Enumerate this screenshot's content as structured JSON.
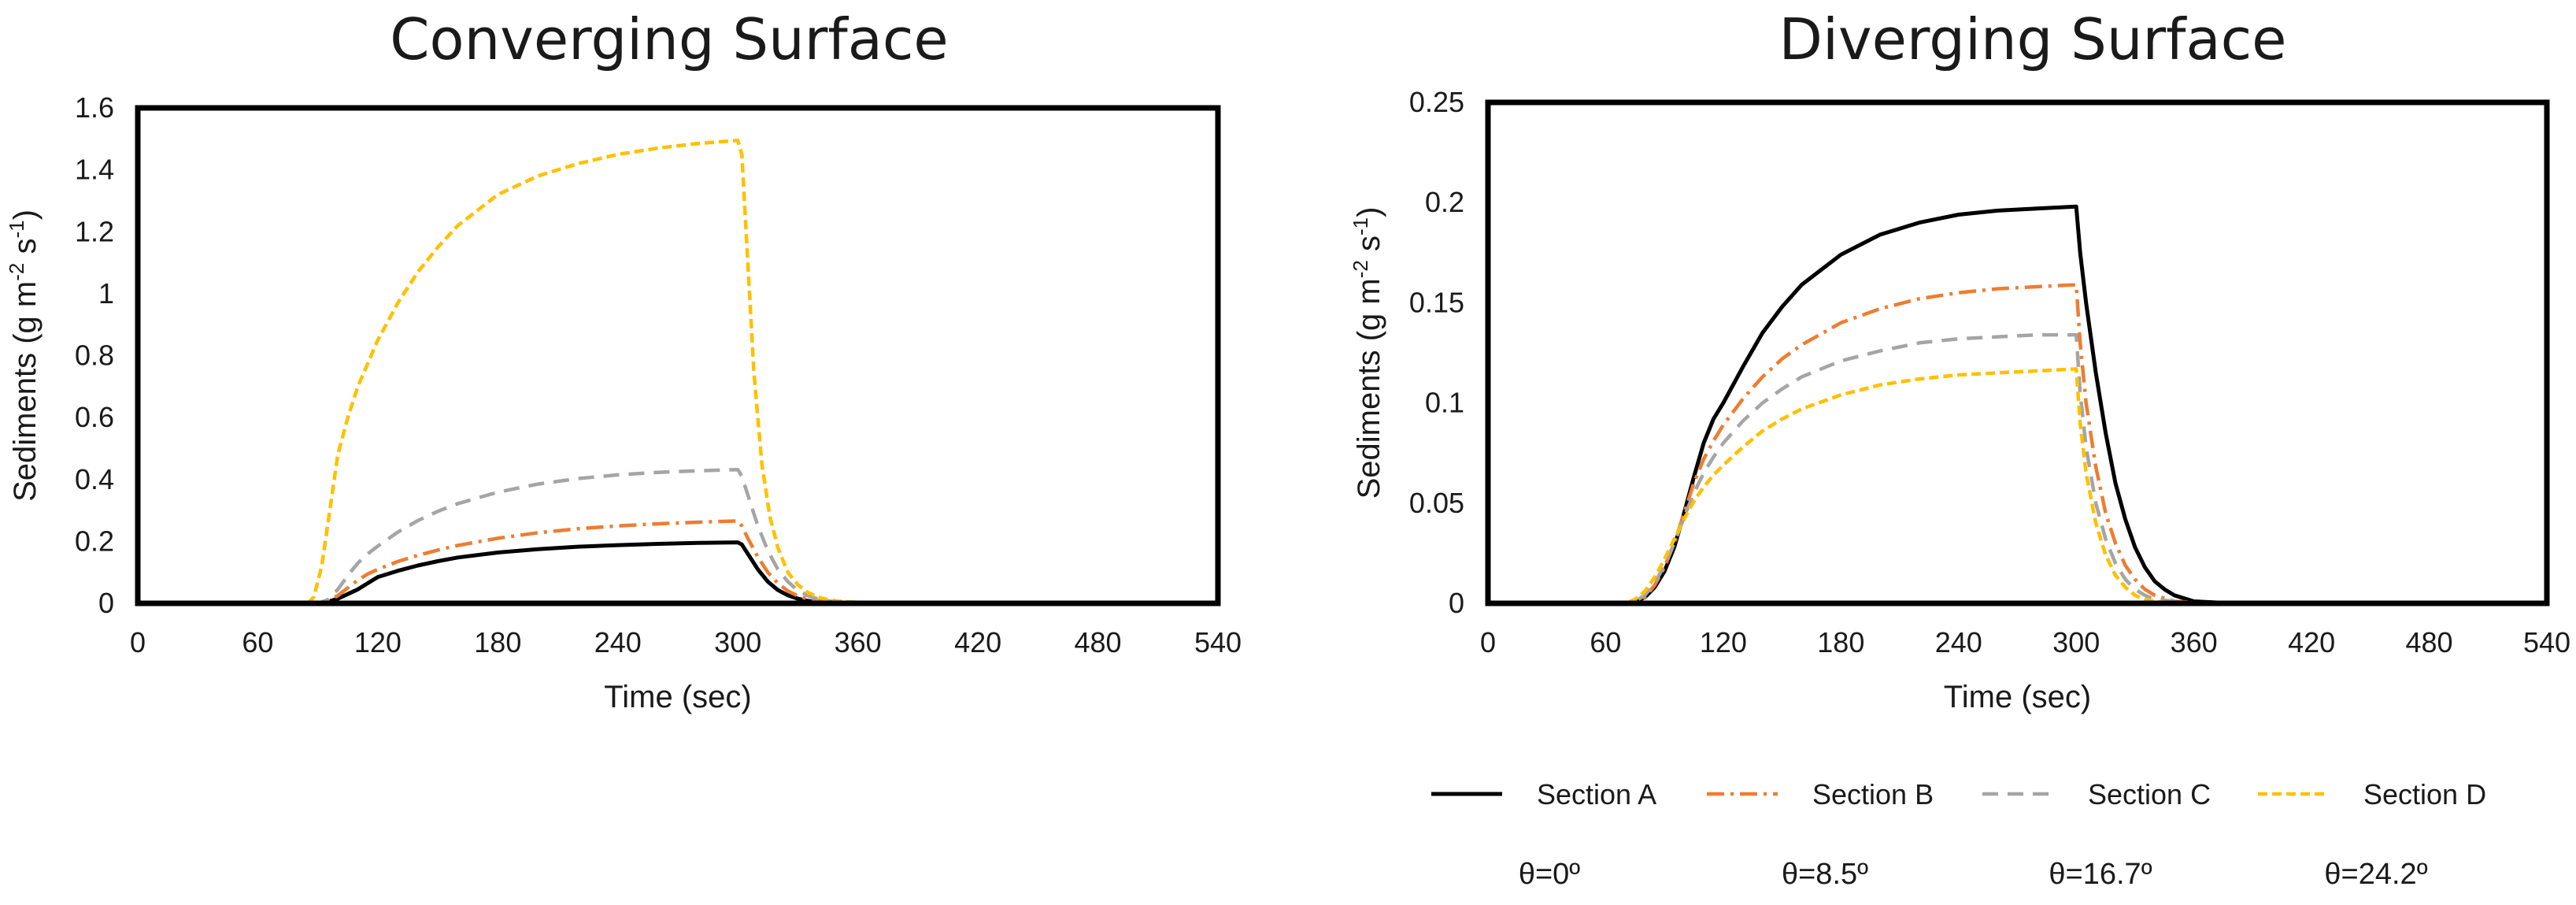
{
  "chart_data": [
    {
      "type": "line",
      "title": "Converging Surface",
      "xlabel": "Time (sec)",
      "ylabel": "Sediments (g m⁻² s⁻¹)",
      "xlim": [
        0,
        540
      ],
      "ylim": [
        0,
        1.6
      ],
      "xticks": [
        "0",
        "60",
        "120",
        "180",
        "240",
        "300",
        "360",
        "420",
        "480",
        "540"
      ],
      "yticks": [
        "0",
        "0.2",
        "0.4",
        "0.6",
        "0.8",
        "1",
        "1.2",
        "1.4",
        "1.6"
      ],
      "grid": false,
      "series": [
        {
          "name": "Section A",
          "color": "#000000",
          "dash": "solid",
          "x": [
            0,
            90,
            95,
            100,
            105,
            110,
            115,
            120,
            130,
            140,
            150,
            160,
            180,
            200,
            220,
            240,
            260,
            280,
            300,
            302,
            305,
            310,
            315,
            320,
            325,
            330,
            335,
            340,
            345,
            350,
            360,
            380,
            540
          ],
          "y": [
            0,
            0,
            0.005,
            0.015,
            0.03,
            0.045,
            0.065,
            0.085,
            0.105,
            0.122,
            0.136,
            0.148,
            0.164,
            0.175,
            0.183,
            0.188,
            0.192,
            0.195,
            0.197,
            0.19,
            0.16,
            0.11,
            0.07,
            0.043,
            0.026,
            0.015,
            0.008,
            0.004,
            0.002,
            0.001,
            0,
            0,
            0
          ]
        },
        {
          "name": "Section B",
          "color": "#ED7D31",
          "dash": "dashdot",
          "x": [
            0,
            90,
            95,
            100,
            105,
            110,
            115,
            120,
            130,
            140,
            150,
            160,
            180,
            200,
            220,
            240,
            260,
            280,
            300,
            302,
            305,
            310,
            315,
            320,
            325,
            330,
            335,
            340,
            345,
            350,
            360,
            380,
            540
          ],
          "y": [
            0,
            0,
            0.008,
            0.025,
            0.05,
            0.075,
            0.095,
            0.11,
            0.135,
            0.155,
            0.172,
            0.187,
            0.21,
            0.228,
            0.241,
            0.25,
            0.257,
            0.262,
            0.266,
            0.25,
            0.21,
            0.15,
            0.1,
            0.065,
            0.04,
            0.024,
            0.014,
            0.008,
            0.004,
            0.002,
            0.001,
            0,
            0
          ]
        },
        {
          "name": "Section C",
          "color": "#A5A5A5",
          "dash": "dash",
          "x": [
            0,
            90,
            95,
            100,
            105,
            110,
            115,
            120,
            130,
            140,
            150,
            160,
            180,
            200,
            220,
            240,
            260,
            280,
            300,
            302,
            305,
            310,
            315,
            320,
            325,
            330,
            335,
            340,
            345,
            350,
            360,
            380,
            540
          ],
          "y": [
            0,
            0,
            0.012,
            0.045,
            0.09,
            0.13,
            0.16,
            0.185,
            0.23,
            0.267,
            0.297,
            0.322,
            0.359,
            0.385,
            0.403,
            0.415,
            0.423,
            0.428,
            0.432,
            0.41,
            0.35,
            0.25,
            0.17,
            0.11,
            0.07,
            0.042,
            0.025,
            0.014,
            0.008,
            0.004,
            0.001,
            0,
            0
          ]
        },
        {
          "name": "Section D",
          "color": "#FFC000",
          "dash": "shortdash",
          "x": [
            0,
            85,
            88,
            92,
            96,
            100,
            105,
            110,
            120,
            130,
            140,
            150,
            160,
            180,
            200,
            220,
            240,
            260,
            280,
            300,
            302,
            305,
            308,
            312,
            316,
            320,
            325,
            330,
            335,
            340,
            345,
            350,
            360,
            370,
            380,
            540
          ],
          "y": [
            0,
            0,
            0.02,
            0.12,
            0.3,
            0.48,
            0.6,
            0.7,
            0.85,
            0.97,
            1.07,
            1.15,
            1.22,
            1.32,
            1.38,
            1.42,
            1.45,
            1.47,
            1.485,
            1.495,
            1.45,
            1.1,
            0.75,
            0.45,
            0.28,
            0.18,
            0.1,
            0.06,
            0.035,
            0.02,
            0.012,
            0.007,
            0.003,
            0.001,
            0,
            0
          ]
        }
      ]
    },
    {
      "type": "line",
      "title": "Diverging Surface",
      "xlabel": "Time (sec)",
      "ylabel": "Sediments (g m⁻² s⁻¹)",
      "xlim": [
        0,
        540
      ],
      "ylim": [
        0,
        0.25
      ],
      "xticks": [
        "0",
        "60",
        "120",
        "180",
        "240",
        "300",
        "360",
        "420",
        "480",
        "540"
      ],
      "yticks": [
        "0",
        "0.05",
        "0.1",
        "0.15",
        "0.2",
        "0.25"
      ],
      "grid": false,
      "series": [
        {
          "name": "Section A",
          "color": "#000000",
          "dash": "solid",
          "x": [
            0,
            70,
            75,
            80,
            85,
            90,
            95,
            100,
            105,
            110,
            115,
            120,
            130,
            140,
            150,
            160,
            180,
            200,
            220,
            240,
            260,
            280,
            300,
            302,
            305,
            310,
            315,
            320,
            325,
            330,
            335,
            340,
            345,
            350,
            360,
            370,
            380,
            540
          ],
          "y": [
            0,
            0,
            0.001,
            0.003,
            0.008,
            0.016,
            0.028,
            0.045,
            0.063,
            0.08,
            0.092,
            0.1,
            0.118,
            0.135,
            0.148,
            0.159,
            0.174,
            0.184,
            0.19,
            0.194,
            0.196,
            0.197,
            0.198,
            0.175,
            0.15,
            0.115,
            0.085,
            0.06,
            0.042,
            0.028,
            0.018,
            0.011,
            0.007,
            0.004,
            0.001,
            0.0005,
            0,
            0
          ]
        },
        {
          "name": "Section B",
          "color": "#ED7D31",
          "dash": "dashdot",
          "x": [
            0,
            70,
            75,
            80,
            85,
            90,
            95,
            100,
            105,
            110,
            115,
            120,
            130,
            140,
            150,
            160,
            180,
            200,
            220,
            240,
            260,
            280,
            300,
            302,
            305,
            310,
            315,
            320,
            325,
            330,
            335,
            340,
            350,
            360,
            380,
            540
          ],
          "y": [
            0,
            0,
            0.001,
            0.003,
            0.009,
            0.018,
            0.03,
            0.045,
            0.06,
            0.072,
            0.081,
            0.089,
            0.102,
            0.113,
            0.122,
            0.129,
            0.14,
            0.147,
            0.152,
            0.155,
            0.157,
            0.158,
            0.159,
            0.13,
            0.1,
            0.068,
            0.045,
            0.03,
            0.019,
            0.012,
            0.007,
            0.004,
            0.001,
            0.0005,
            0,
            0
          ]
        },
        {
          "name": "Section C",
          "color": "#A5A5A5",
          "dash": "dash",
          "x": [
            0,
            70,
            75,
            80,
            85,
            90,
            95,
            100,
            105,
            110,
            115,
            120,
            130,
            140,
            150,
            160,
            180,
            200,
            220,
            240,
            260,
            280,
            300,
            302,
            305,
            310,
            315,
            320,
            325,
            330,
            335,
            340,
            350,
            360,
            380,
            540
          ],
          "y": [
            0,
            0,
            0.001,
            0.004,
            0.01,
            0.019,
            0.03,
            0.043,
            0.055,
            0.065,
            0.073,
            0.08,
            0.091,
            0.1,
            0.107,
            0.113,
            0.121,
            0.126,
            0.13,
            0.132,
            0.133,
            0.134,
            0.134,
            0.105,
            0.078,
            0.05,
            0.032,
            0.02,
            0.012,
            0.007,
            0.004,
            0.002,
            0.001,
            0,
            0,
            0
          ]
        },
        {
          "name": "Section D",
          "color": "#FFC000",
          "dash": "shortdash",
          "x": [
            0,
            70,
            75,
            80,
            85,
            90,
            95,
            100,
            105,
            110,
            115,
            120,
            130,
            140,
            150,
            160,
            180,
            200,
            220,
            240,
            260,
            280,
            300,
            302,
            305,
            310,
            315,
            320,
            325,
            330,
            335,
            340,
            350,
            360,
            380,
            540
          ],
          "y": [
            0,
            0,
            0.002,
            0.006,
            0.013,
            0.022,
            0.032,
            0.042,
            0.051,
            0.058,
            0.064,
            0.069,
            0.078,
            0.086,
            0.092,
            0.097,
            0.104,
            0.109,
            0.112,
            0.114,
            0.115,
            0.116,
            0.117,
            0.09,
            0.065,
            0.04,
            0.024,
            0.014,
            0.008,
            0.004,
            0.002,
            0.001,
            0,
            0,
            0,
            0
          ]
        }
      ]
    }
  ],
  "legend": {
    "placement": "bottom-right",
    "items": [
      {
        "label": "Section A",
        "theta": "θ=0º",
        "color": "#000000",
        "dash": "solid"
      },
      {
        "label": "Section B",
        "theta": "θ=8.5º",
        "color": "#ED7D31",
        "dash": "dashdot"
      },
      {
        "label": "Section C",
        "theta": "θ=16.7º",
        "color": "#A5A5A5",
        "dash": "dash"
      },
      {
        "label": "Section D",
        "theta": "θ=24.2º",
        "color": "#FFC000",
        "dash": "shortdash"
      }
    ]
  }
}
